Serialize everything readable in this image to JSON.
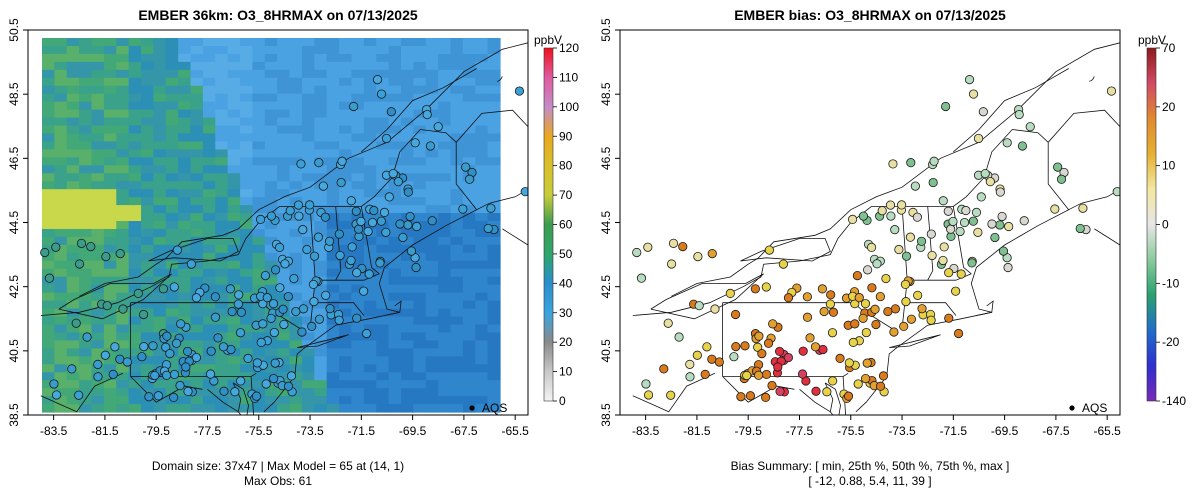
{
  "colors": {
    "ocean_shades": [
      "#58ace6",
      "#4aa2e2",
      "#3f94d6",
      "#2f86cc",
      "#2778c2"
    ],
    "land_shades": [
      "#2c8fb6",
      "#3496a8",
      "#3aa18a",
      "#42a877",
      "#58b06a"
    ],
    "hot_shade": "#c8d84a",
    "bias_colors": [
      "#e8d24a",
      "#e2a030",
      "#d97a1c",
      "#e8e0a0",
      "#d8d8d0",
      "#b8dcc0",
      "#7fc090",
      "#d84060",
      "#e03040"
    ]
  },
  "left_map": {
    "title": "EMBER 36km: O3_8HRMAX on 07/13/2025",
    "caption_line1": "Domain size: 37x47 | Max Model = 65 at (14, 1)",
    "caption_line2": "Max Obs: 61",
    "legend_label": "AQS",
    "colorbar": {
      "unit": "ppbV",
      "ticks": [
        "120",
        "110",
        "100",
        "90",
        "80",
        "70",
        "60",
        "50",
        "40",
        "30",
        "20",
        "10",
        "0"
      ],
      "stops": [
        "#f0101a",
        "#e05aa0",
        "#c48cc8",
        "#e8a820",
        "#d9c02a",
        "#c8cc3a",
        "#3c9c50",
        "#30a66a",
        "#2a8ecc",
        "#3aa4e0",
        "#8a8a8a",
        "#c8c8c8",
        "#f4f4f4"
      ]
    }
  },
  "right_map": {
    "title": "EMBER bias: O3_8HRMAX on 07/13/2025",
    "caption_line1": "Bias Summary: [ min, 25th %, 50th %, 75th %, max ]",
    "caption_line2": "[ -12,   0.88,   5.4,   11,   39 ]",
    "legend_label": "AQS",
    "colorbar": {
      "unit": "ppbV",
      "ticks": [
        "70",
        "20",
        "10",
        "0",
        "-10",
        "-20",
        "-140"
      ],
      "stops": [
        "#8b1a1a",
        "#d24a64",
        "#e08a30",
        "#e6b032",
        "#f2e8a0",
        "#e6e6e6",
        "#8acb9c",
        "#2aa070",
        "#1f6ec8",
        "#2e2ed0",
        "#7a2ab8"
      ]
    }
  },
  "axes": {
    "x_ticks": [
      "-83.5",
      "-81.5",
      "-79.5",
      "-77.5",
      "-75.5",
      "-73.5",
      "-71.5",
      "-69.5",
      "-67.5",
      "-65.5"
    ],
    "y_ticks": [
      "38.5",
      "40.5",
      "42.5",
      "44.5",
      "46.5",
      "48.5",
      "50.5"
    ],
    "xlim": [
      -84.5,
      -65.0
    ],
    "ylim": [
      38.5,
      50.5
    ]
  }
}
